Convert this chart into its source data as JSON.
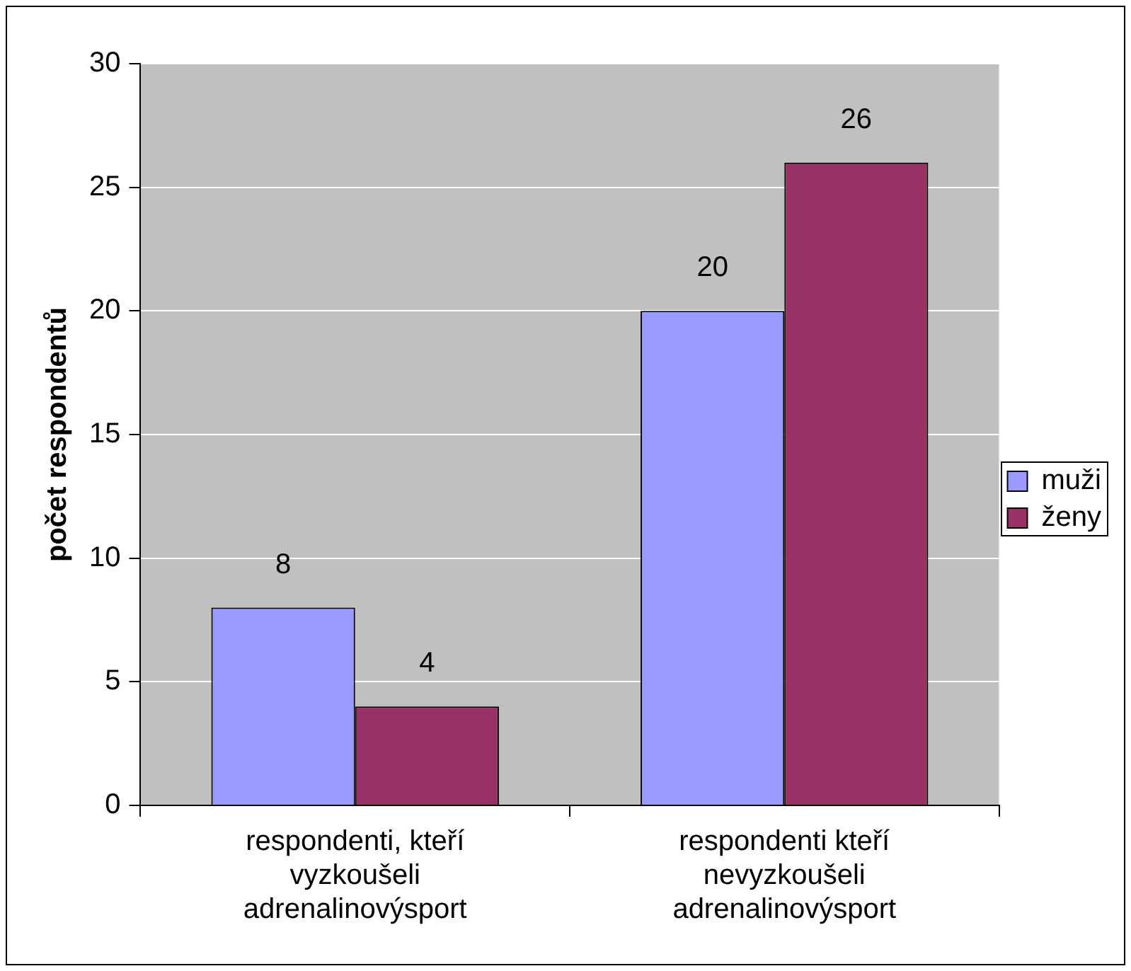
{
  "chart_data": {
    "type": "bar",
    "ylabel": "počet respondentů",
    "categories": [
      "respondenti, kteří vyzkoušeli adrenalinovýsport",
      "respondenti kteří nevyzkoušeli adrenalinovýsport"
    ],
    "series": [
      {
        "name": "muži",
        "color": "#9999ff",
        "values": [
          8,
          20
        ]
      },
      {
        "name": "ženy",
        "color": "#993366",
        "values": [
          4,
          26
        ]
      }
    ],
    "ylim": [
      0,
      30
    ],
    "yticks": [
      0,
      5,
      10,
      15,
      20,
      25,
      30
    ],
    "grid": "y",
    "legend": "right",
    "data_labels": true
  }
}
